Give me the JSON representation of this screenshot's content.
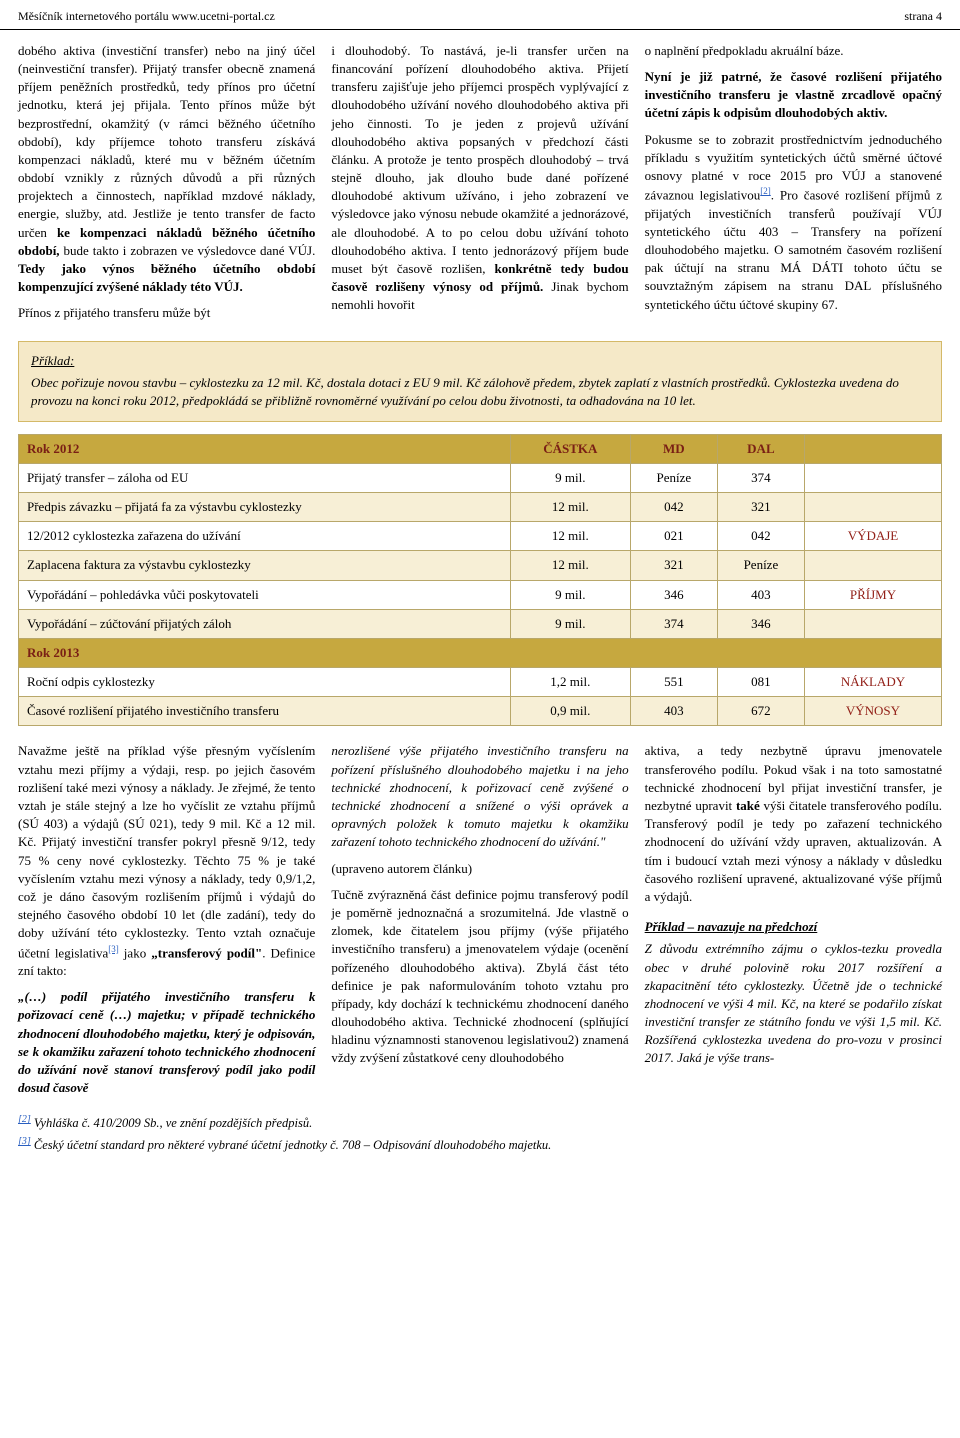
{
  "header": {
    "left": "Měsíčník internetového portálu www.ucetni-portal.cz",
    "right": "strana 4"
  },
  "col1": {
    "p1a": "dobého aktiva (investiční transfer) nebo na jiný účel (neinvestiční transfer). Přijatý transfer obecně znamená příjem peněžních prostředků, tedy přínos pro účetní jednotku, která jej přijala. Tento přínos může být bezprostřední, okamžitý (v rámci běžného účetního období), kdy příjemce tohoto transferu získává kompenzaci nákladů, které mu v běžném účetním období vznikly z různých důvodů a při různých projektech a činnostech, například mzdové náklady, energie, služby, atd. Jestliže je tento transfer de facto určen ",
    "p1b": "ke kompenzaci nákladů běžného účetního období,",
    "p1c": " bude takto i zobrazen ve výsledovce dané VÚJ. ",
    "p1d": "Tedy jako výnos běžného účetního období kompenzující zvýšené náklady této VÚJ.",
    "p2": "Přínos z přijatého transferu může být"
  },
  "col2": {
    "p1a": "i dlouhodobý. To nastává, je-li transfer určen na financování pořízení dlouhodobého aktiva. Přijetí transferu zajišťuje jeho příjemci prospěch vyplývající z dlouhodobého užívání nového dlouhodobého aktiva při jeho činnosti. To je jeden z projevů užívání dlouhodobého aktiva popsaných v předchozí části článku. A protože je tento prospěch dlouhodobý – trvá stejně dlouho, jak dlouho bude dané pořízené dlouhodobé aktivum užíváno, i jeho zobrazení ve výsledovce jako výnosu nebude okamžité a jednorázové, ale dlouhodobé. A to po celou dobu užívání tohoto dlouhodobého aktiva. I tento jednorázový příjem bude muset být časově rozlišen, ",
    "p1b": "konkrétně tedy budou časově rozlišeny výnosy od příjmů.",
    "p1c": " Jinak bychom nemohli hovořit"
  },
  "col3": {
    "p1": "o naplnění předpokladu akruální báze.",
    "p2": "Nyní je již patrné, že časové rozlišení přijatého investičního transferu je vlastně zrcadlově opačný účetní zápis k odpisům dlouhodobých aktiv.",
    "p3a": "Pokusme se to zobrazit prostřednictvím jednoduchého příkladu s využitím syntetických účtů směrné účtové osnovy platné v roce 2015 pro VÚJ a stanovené závaznou legislativou",
    "p3b": ". Pro časové rozlišení příjmů z přijatých investičních transferů používají VÚJ syntetického účtu 403 – Transfery na pořízení dlouhodobého majetku. O samotném časovém rozlišení pak účtují na stranu MÁ DÁTI tohoto účtu se souvztažným zápisem na stranu DAL příslušného syntetického účtu účtové skupiny 67.",
    "fn2": "[2]"
  },
  "example": {
    "title": "Příklad:",
    "body": "Obec pořizuje novou stavbu – cyklostezku za 12 mil. Kč, dostala dotaci z EU 9 mil. Kč zálohově předem, zbytek zaplatí z vlastních prostředků. Cyklostezka uvedena do provozu na konci roku 2012, předpokládá se přibližně rovnoměrné využívání po celou dobu životnosti, ta odhadována na 10 let."
  },
  "table": {
    "h1": "Rok 2012",
    "h2": "ČÁSTKA",
    "h3": "MD",
    "h4": "DAL",
    "r1": {
      "c1": "Přijatý transfer – záloha od EU",
      "c2": "9 mil.",
      "c3": "Peníze",
      "c4": "374",
      "c5": ""
    },
    "r2": {
      "c1": "Předpis závazku – přijatá fa za výstavbu cyklostezky",
      "c2": "12 mil.",
      "c3": "042",
      "c4": "321",
      "c5": ""
    },
    "r3": {
      "c1": "12/2012 cyklostezka zařazena do užívání",
      "c2": "12 mil.",
      "c3": "021",
      "c4": "042",
      "c5": "VÝDAJE"
    },
    "r4": {
      "c1": "Zaplacena faktura za výstavbu cyklostezky",
      "c2": "12 mil.",
      "c3": "321",
      "c4": "Peníze",
      "c5": ""
    },
    "r5": {
      "c1": "Vypořádání – pohledávka vůči poskytovateli",
      "c2": "9 mil.",
      "c3": "346",
      "c4": "403",
      "c5": "PŘÍJMY"
    },
    "r6": {
      "c1": "Vypořádání – zúčtování přijatých záloh",
      "c2": "9 mil.",
      "c3": "374",
      "c4": "346",
      "c5": ""
    },
    "h2013": "Rok 2013",
    "r7": {
      "c1": "Roční odpis cyklostezky",
      "c2": "1,2 mil.",
      "c3": "551",
      "c4": "081",
      "c5": "NÁKLADY"
    },
    "r8": {
      "c1": "Časové rozlišení přijatého investičního transferu",
      "c2": "0,9 mil.",
      "c3": "403",
      "c4": "672",
      "c5": "VÝNOSY"
    }
  },
  "lower": {
    "col1": {
      "p1a": "Navažme ještě na příklad výše přesným vyčíslením vztahu mezi příjmy a výdaji, resp. po jejich časovém rozlišení také mezi výnosy a náklady. Je zřejmé, že tento vztah je stále stejný a lze ho vyčíslit ze vztahu příjmů (SÚ 403) a výdajů (SÚ 021), tedy 9 mil. Kč a 12 mil. Kč. Přijatý investiční transfer pokryl přesně 9/12, tedy 75 % ceny nové cyklostezky. Těchto 75 % je také vyčíslením vztahu mezi výnosy a náklady, tedy 0,9/1,2, což je dáno časovým rozlišením příjmů i výdajů do stejného časového období 10 let (dle zadání), tedy do doby užívání této cyklostezky. Tento vztah označuje účetní legislativa",
      "fn3": "[3]",
      "p1b": " jako ",
      "p1c": "„transferový podíl\"",
      "p1d": ". Definice zní takto:",
      "p2": "„(…) podíl přijatého investičního transferu k pořizovací ceně (…) majetku; v případě technického zhodnocení dlouhodobého majetku, který je odpisován, se k okamžiku zařazení tohoto technického zhodnocení do užívání nově stanoví transferový podíl jako podíl dosud časově"
    },
    "col2": {
      "p1": "nerozlišené výše přijatého investičního transferu na pořízení příslušného dlouhodobého majetku i na jeho technické zhodnocení, k pořizovací ceně zvýšené o technické zhodnocení a snížené o výši oprávek a opravných položek k tomuto majetku k okamžiku zařazení tohoto technického zhodnocení do užívání.\"",
      "p2": "(upraveno autorem článku)",
      "p3": "Tučně zvýrazněná část definice pojmu transferový podíl je poměrně jednoznačná a srozumitelná. Jde vlastně o zlomek, kde čitatelem jsou příjmy (výše přijatého investičního transferu) a jmenovatelem výdaje (ocenění pořízeného dlouhodobého aktiva). Zbylá část této definice je pak naformulováním tohoto vztahu pro případy, kdy dochází k technickému zhodnocení daného dlouhodobého aktiva. Technické zhodnocení (splňující hladinu významnosti stanovenou legislativou2) znamená vždy zvýšení zůstatkové ceny dlouhodobého"
    },
    "col3": {
      "p1a": "aktiva, a tedy nezbytně úpravu jmenovatele transferového podílu. Pokud však i na toto samostatné technické zhodnocení byl přijat investiční transfer, je nezbytné upravit ",
      "p1b": "také",
      "p1c": " výši čitatele transferového podílu. Transferový podíl je tedy po zařazení technického zhodnocení do užívání vždy upraven, aktualizován. A tím i budoucí vztah mezi výnosy a náklady v důsledku časového rozlišení upravené, aktualizované výše příjmů a výdajů.",
      "exTitle": "Příklad – navazuje na předchozí",
      "exBody": "Z důvodu extrémního zájmu o cyklos-tezku provedla obec v druhé polovině roku 2017 rozšíření a zkapacitnění této cyklostezky. Účetně jde o technické zhodnocení ve výši 4 mil. Kč, na které se podařilo získat investiční transfer ze státního fondu ve výši 1,5 mil. Kč. Rozšířená cyklostezka uvedena do pro-vozu v prosinci 2017. Jaká je výše trans-"
    }
  },
  "footnotes": {
    "f2num": "[2]",
    "f2": " Vyhláška č. 410/2009 Sb., ve znění pozdějších předpisů.",
    "f3num": "[3]",
    "f3": " Český účetní standard pro některé vybrané účetní jednotky č. 708 – Odpisování dlouhodobého majetku."
  }
}
